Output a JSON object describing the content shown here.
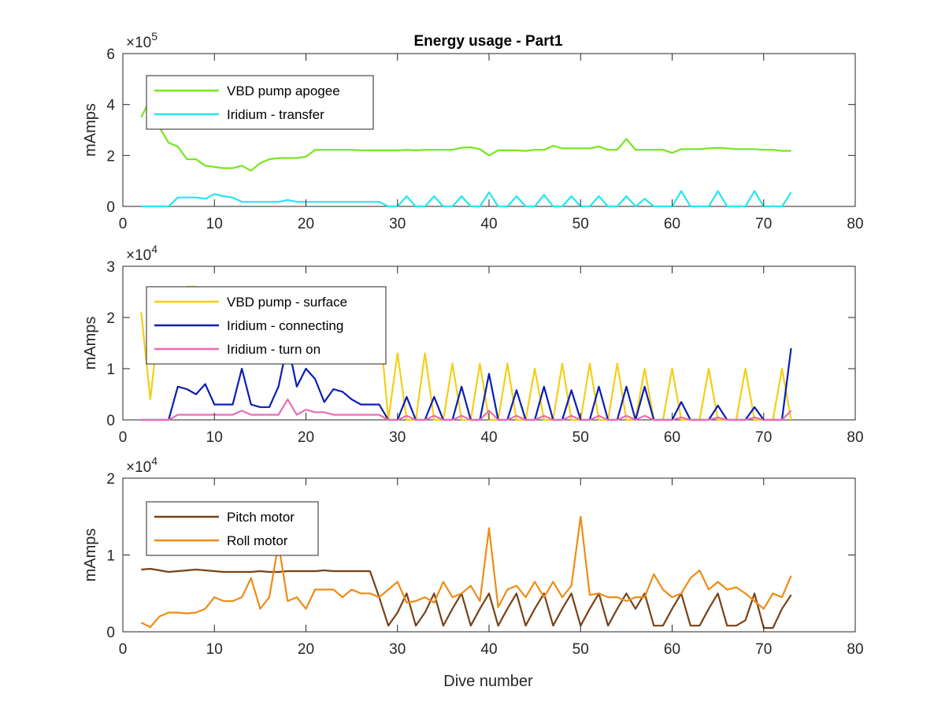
{
  "figure": {
    "title": "Energy usage - Part1",
    "xlabel": "Dive number"
  },
  "chart_data": [
    {
      "type": "line",
      "title": "Energy usage - Part1",
      "xlabel": "",
      "ylabel": "mAmps",
      "xlim": [
        0,
        80
      ],
      "ylim": [
        0,
        600000
      ],
      "xticks": [
        0,
        10,
        20,
        30,
        40,
        50,
        60,
        70,
        80
      ],
      "yticks": [
        0,
        200000,
        400000,
        600000
      ],
      "ytick_labels": [
        "0",
        "2",
        "4",
        "6"
      ],
      "exponent_label": "×10",
      "exponent_power": "5",
      "grid": false,
      "legend": "top-left",
      "series": [
        {
          "name": "VBD pump apogee",
          "color": "#77e51f",
          "x": [
            2,
            3,
            4,
            5,
            6,
            7,
            8,
            9,
            10,
            11,
            12,
            13,
            14,
            15,
            16,
            17,
            18,
            19,
            20,
            21,
            22,
            23,
            24,
            25,
            26,
            27,
            28,
            29,
            30,
            31,
            32,
            33,
            34,
            35,
            36,
            37,
            38,
            39,
            40,
            41,
            42,
            43,
            44,
            45,
            46,
            47,
            48,
            49,
            50,
            51,
            52,
            53,
            54,
            55,
            56,
            57,
            58,
            59,
            60,
            61,
            62,
            63,
            64,
            65,
            66,
            67,
            68,
            69,
            70,
            71,
            72,
            73
          ],
          "y": [
            350000,
            420000,
            310000,
            250000,
            235000,
            185000,
            185000,
            160000,
            155000,
            150000,
            150000,
            160000,
            140000,
            170000,
            185000,
            190000,
            190000,
            190000,
            195000,
            222000,
            222000,
            222000,
            222000,
            222000,
            220000,
            220000,
            220000,
            220000,
            220000,
            222000,
            220000,
            222000,
            222000,
            222000,
            222000,
            230000,
            232000,
            225000,
            200000,
            220000,
            220000,
            220000,
            218000,
            222000,
            222000,
            238000,
            228000,
            228000,
            228000,
            228000,
            235000,
            222000,
            222000,
            265000,
            222000,
            222000,
            222000,
            222000,
            210000,
            225000,
            225000,
            225000,
            228000,
            230000,
            228000,
            225000,
            225000,
            225000,
            222000,
            222000,
            218000,
            218000
          ]
        },
        {
          "name": "Iridium - transfer",
          "color": "#25e6f0",
          "x": [
            2,
            3,
            4,
            5,
            6,
            7,
            8,
            9,
            10,
            11,
            12,
            13,
            14,
            15,
            16,
            17,
            18,
            19,
            20,
            21,
            22,
            23,
            24,
            25,
            26,
            27,
            28,
            29,
            30,
            31,
            32,
            33,
            34,
            35,
            36,
            37,
            38,
            39,
            40,
            41,
            42,
            43,
            44,
            45,
            46,
            47,
            48,
            49,
            50,
            51,
            52,
            53,
            54,
            55,
            56,
            57,
            58,
            59,
            60,
            61,
            62,
            63,
            64,
            65,
            66,
            67,
            68,
            69,
            70,
            71,
            72,
            73
          ],
          "y": [
            0,
            0,
            0,
            0,
            35000,
            35000,
            35000,
            30000,
            48000,
            40000,
            35000,
            18000,
            18000,
            18000,
            18000,
            18000,
            25000,
            18000,
            18000,
            18000,
            18000,
            18000,
            18000,
            18000,
            18000,
            18000,
            18000,
            0,
            0,
            40000,
            0,
            0,
            40000,
            0,
            0,
            40000,
            0,
            0,
            55000,
            0,
            0,
            40000,
            0,
            0,
            45000,
            0,
            0,
            40000,
            0,
            0,
            40000,
            0,
            0,
            40000,
            0,
            30000,
            0,
            0,
            0,
            60000,
            0,
            0,
            0,
            60000,
            0,
            0,
            0,
            60000,
            0,
            0,
            0,
            55000
          ]
        }
      ]
    },
    {
      "type": "line",
      "title": "",
      "xlabel": "",
      "ylabel": "mAmps",
      "xlim": [
        0,
        80
      ],
      "ylim": [
        0,
        30000
      ],
      "xticks": [
        0,
        10,
        20,
        30,
        40,
        50,
        60,
        70,
        80
      ],
      "yticks": [
        0,
        10000,
        20000,
        30000
      ],
      "ytick_labels": [
        "0",
        "1",
        "2",
        "3"
      ],
      "exponent_label": "×10",
      "exponent_power": "4",
      "grid": false,
      "legend": "top-left",
      "series": [
        {
          "name": "VBD pump - surface",
          "color": "#f3cf17",
          "x": [
            2,
            3,
            4,
            5,
            6,
            7,
            8,
            9,
            10,
            11,
            12,
            13,
            14,
            15,
            16,
            17,
            18,
            19,
            20,
            21,
            22,
            23,
            24,
            25,
            26,
            27,
            28,
            29,
            30,
            31,
            32,
            33,
            34,
            35,
            36,
            37,
            38,
            39,
            40,
            41,
            42,
            43,
            44,
            45,
            46,
            47,
            48,
            49,
            50,
            51,
            52,
            53,
            54,
            55,
            56,
            57,
            58,
            59,
            60,
            61,
            62,
            63,
            64,
            65,
            66,
            67,
            68,
            69,
            70,
            71,
            72,
            73
          ],
          "y": [
            21000,
            4000,
            20000,
            20000,
            20000,
            26000,
            26000,
            20000,
            20000,
            20000,
            20000,
            20000,
            20000,
            20000,
            20000,
            20000,
            20000,
            20000,
            20000,
            20000,
            20000,
            20000,
            20000,
            20000,
            20000,
            20000,
            20000,
            0,
            13000,
            0,
            0,
            13000,
            0,
            0,
            11000,
            0,
            0,
            11000,
            0,
            0,
            11000,
            0,
            0,
            10000,
            0,
            0,
            11000,
            0,
            0,
            11000,
            0,
            0,
            11000,
            0,
            0,
            10000,
            0,
            0,
            10000,
            0,
            0,
            0,
            10000,
            0,
            0,
            0,
            10000,
            0,
            0,
            0,
            10000,
            0
          ]
        },
        {
          "name": "Iridium - connecting",
          "color": "#0a1eb4",
          "x": [
            2,
            3,
            4,
            5,
            6,
            7,
            8,
            9,
            10,
            11,
            12,
            13,
            14,
            15,
            16,
            17,
            18,
            19,
            20,
            21,
            22,
            23,
            24,
            25,
            26,
            27,
            28,
            29,
            30,
            31,
            32,
            33,
            34,
            35,
            36,
            37,
            38,
            39,
            40,
            41,
            42,
            43,
            44,
            45,
            46,
            47,
            48,
            49,
            50,
            51,
            52,
            53,
            54,
            55,
            56,
            57,
            58,
            59,
            60,
            61,
            62,
            63,
            64,
            65,
            66,
            67,
            68,
            69,
            70,
            71,
            72,
            73
          ],
          "y": [
            0,
            0,
            0,
            0,
            6500,
            6000,
            5000,
            7000,
            3000,
            3000,
            3000,
            10000,
            3000,
            2500,
            2500,
            6500,
            15000,
            6500,
            10000,
            8000,
            3500,
            6000,
            5500,
            4000,
            3000,
            3000,
            3000,
            0,
            0,
            4500,
            0,
            0,
            4500,
            0,
            0,
            6500,
            0,
            0,
            9000,
            0,
            0,
            5800,
            0,
            0,
            6500,
            0,
            0,
            5800,
            0,
            0,
            6500,
            0,
            0,
            6500,
            0,
            6500,
            0,
            0,
            0,
            3500,
            0,
            0,
            0,
            2800,
            0,
            0,
            0,
            2500,
            0,
            0,
            0,
            14000
          ]
        },
        {
          "name": "Iridium - turn on",
          "color": "#ea6cb3",
          "x": [
            2,
            3,
            4,
            5,
            6,
            7,
            8,
            9,
            10,
            11,
            12,
            13,
            14,
            15,
            16,
            17,
            18,
            19,
            20,
            21,
            22,
            23,
            24,
            25,
            26,
            27,
            28,
            29,
            30,
            31,
            32,
            33,
            34,
            35,
            36,
            37,
            38,
            39,
            40,
            41,
            42,
            43,
            44,
            45,
            46,
            47,
            48,
            49,
            50,
            51,
            52,
            53,
            54,
            55,
            56,
            57,
            58,
            59,
            60,
            61,
            62,
            63,
            64,
            65,
            66,
            67,
            68,
            69,
            70,
            71,
            72,
            73
          ],
          "y": [
            0,
            0,
            0,
            0,
            1000,
            1000,
            1000,
            1000,
            1000,
            1000,
            1000,
            1800,
            1000,
            1000,
            1000,
            1000,
            4000,
            1000,
            2000,
            1500,
            1500,
            1000,
            1000,
            1000,
            1000,
            1000,
            1000,
            0,
            0,
            800,
            0,
            0,
            800,
            0,
            0,
            800,
            0,
            0,
            1800,
            0,
            0,
            800,
            0,
            0,
            800,
            0,
            0,
            800,
            0,
            0,
            800,
            0,
            0,
            800,
            0,
            800,
            0,
            0,
            0,
            500,
            0,
            0,
            0,
            500,
            0,
            0,
            0,
            500,
            0,
            0,
            0,
            1800
          ]
        }
      ]
    },
    {
      "type": "line",
      "title": "",
      "xlabel": "Dive number",
      "ylabel": "mAmps",
      "xlim": [
        0,
        80
      ],
      "ylim": [
        0,
        20000
      ],
      "xticks": [
        0,
        10,
        20,
        30,
        40,
        50,
        60,
        70,
        80
      ],
      "yticks": [
        0,
        10000,
        20000
      ],
      "ytick_labels": [
        "0",
        "1",
        "2"
      ],
      "exponent_label": "×10",
      "exponent_power": "4",
      "grid": false,
      "legend": "top-left",
      "series": [
        {
          "name": "Pitch motor",
          "color": "#7a4216",
          "x": [
            2,
            3,
            4,
            5,
            6,
            7,
            8,
            9,
            10,
            11,
            12,
            13,
            14,
            15,
            16,
            17,
            18,
            19,
            20,
            21,
            22,
            23,
            24,
            25,
            26,
            27,
            28,
            29,
            30,
            31,
            32,
            33,
            34,
            35,
            36,
            37,
            38,
            39,
            40,
            41,
            42,
            43,
            44,
            45,
            46,
            47,
            48,
            49,
            50,
            51,
            52,
            53,
            54,
            55,
            56,
            57,
            58,
            59,
            60,
            61,
            62,
            63,
            64,
            65,
            66,
            67,
            68,
            69,
            70,
            71,
            72,
            73
          ],
          "y": [
            8100,
            8200,
            8000,
            7800,
            7900,
            8000,
            8100,
            8000,
            7900,
            7800,
            7800,
            7800,
            7800,
            7900,
            7800,
            7800,
            7900,
            7900,
            7900,
            7900,
            8000,
            7900,
            7900,
            7900,
            7900,
            7900,
            4500,
            800,
            2500,
            5000,
            800,
            2500,
            5000,
            800,
            3000,
            5000,
            800,
            3000,
            5000,
            800,
            3000,
            5000,
            800,
            3000,
            5000,
            800,
            3000,
            5000,
            800,
            3000,
            5000,
            800,
            3000,
            5000,
            3000,
            5000,
            800,
            800,
            3000,
            5000,
            800,
            800,
            3000,
            5000,
            800,
            800,
            1500,
            5000,
            500,
            500,
            3000,
            4800
          ]
        },
        {
          "name": "Roll motor",
          "color": "#ee8c16",
          "x": [
            2,
            3,
            4,
            5,
            6,
            7,
            8,
            9,
            10,
            11,
            12,
            13,
            14,
            15,
            16,
            17,
            18,
            19,
            20,
            21,
            22,
            23,
            24,
            25,
            26,
            27,
            28,
            29,
            30,
            31,
            32,
            33,
            34,
            35,
            36,
            37,
            38,
            39,
            40,
            41,
            42,
            43,
            44,
            45,
            46,
            47,
            48,
            49,
            50,
            51,
            52,
            53,
            54,
            55,
            56,
            57,
            58,
            59,
            60,
            61,
            62,
            63,
            64,
            65,
            66,
            67,
            68,
            69,
            70,
            71,
            72,
            73
          ],
          "y": [
            1200,
            600,
            2000,
            2500,
            2500,
            2400,
            2500,
            3000,
            4500,
            4000,
            4000,
            4500,
            7000,
            3000,
            4500,
            11500,
            4000,
            4500,
            3000,
            5500,
            5500,
            5500,
            4500,
            5500,
            5000,
            5000,
            4500,
            5500,
            6500,
            3800,
            4000,
            4500,
            3800,
            6500,
            4500,
            5000,
            6000,
            4000,
            13500,
            3200,
            5500,
            6000,
            4500,
            6500,
            4500,
            6500,
            4500,
            6000,
            15000,
            4800,
            5000,
            4500,
            4500,
            4000,
            4500,
            4500,
            7500,
            5500,
            4500,
            5000,
            7000,
            8000,
            5500,
            6500,
            5500,
            5800,
            5000,
            4000,
            3000,
            5000,
            4500,
            7300
          ]
        }
      ]
    }
  ]
}
